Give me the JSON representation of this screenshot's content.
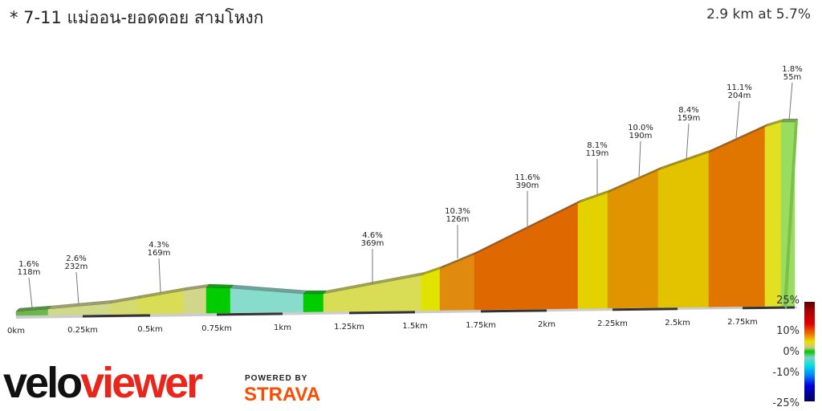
{
  "header": {
    "title": "* 7-11 แม่ออน-ยอดดอย สามโหงก",
    "summary": "2.9 km at 5.7%"
  },
  "chart_data": {
    "type": "area",
    "xlabel": "",
    "ylabel": "",
    "x_ticks": [
      "0km",
      "0.25km",
      "0.5km",
      "0.75km",
      "1km",
      "1.25km",
      "1.5km",
      "1.75km",
      "2km",
      "2.25km",
      "2.5km",
      "2.75km"
    ],
    "segment_colors": [
      "#6ab84a",
      "#d0d98a",
      "#d4da70",
      "#d9dd55",
      "#d2d68a",
      "#00cc00",
      "#88dccc",
      "#00cc00",
      "#d9dd55",
      "#e2e200",
      "#e08a10",
      "#e06800",
      "#e3d200",
      "#e09500",
      "#e3c300",
      "#e07500",
      "#e2e020",
      "#99dd60"
    ],
    "annotations": [
      {
        "grade": "1.6%",
        "length": "118m"
      },
      {
        "grade": "2.6%",
        "length": "232m"
      },
      {
        "grade": "4.3%",
        "length": "169m"
      },
      {
        "grade": "4.6%",
        "length": "369m"
      },
      {
        "grade": "10.3%",
        "length": "126m"
      },
      {
        "grade": "11.6%",
        "length": "390m"
      },
      {
        "grade": "8.1%",
        "length": "119m"
      },
      {
        "grade": "10.0%",
        "length": "190m"
      },
      {
        "grade": "8.4%",
        "length": "159m"
      },
      {
        "grade": "11.1%",
        "length": "204m"
      },
      {
        "grade": "1.8%",
        "length": "55m"
      }
    ],
    "gradient_scale": [
      "25%",
      "10%",
      "0%",
      "-10%",
      "-25%"
    ]
  },
  "branding": {
    "velo": "velo",
    "viewer": "viewer",
    "powered": "POWERED BY",
    "strava": "STRAVA"
  }
}
